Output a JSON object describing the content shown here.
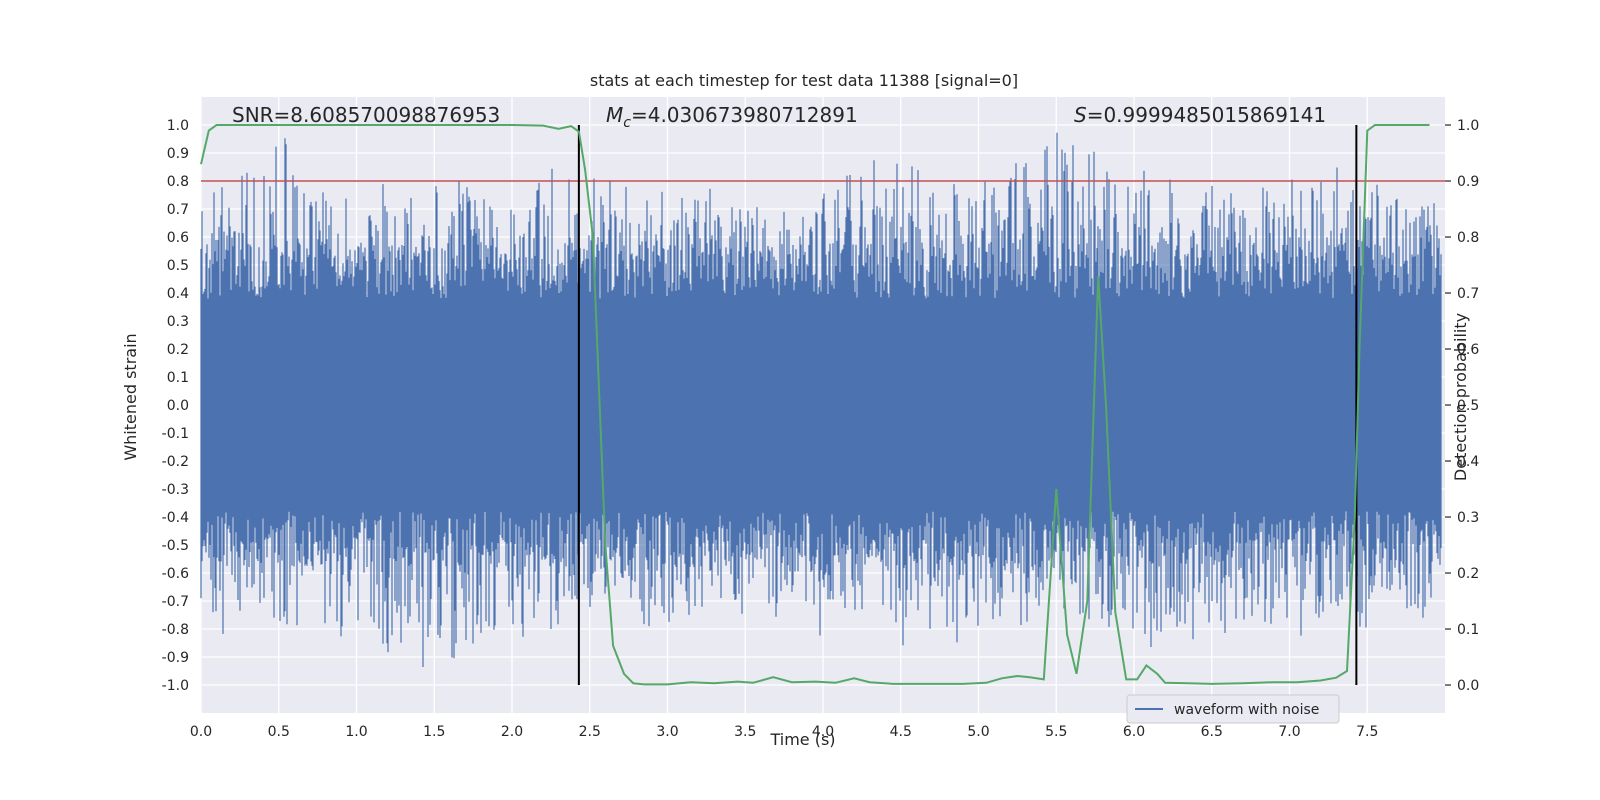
{
  "chart_data": {
    "type": "line",
    "title": "stats at each timestep for test data 11388 [signal=0]",
    "xlabel": "Time (s)",
    "ylabel": "Whitened strain",
    "y2label": "Detection probability",
    "xlim": [
      0.0,
      8.0
    ],
    "ylim": [
      -1.1,
      1.1
    ],
    "y2lim": [
      -0.05,
      1.05
    ],
    "x_ticks": [
      0.0,
      0.5,
      1.0,
      1.5,
      2.0,
      2.5,
      3.0,
      3.5,
      4.0,
      4.5,
      5.0,
      5.5,
      6.0,
      6.5,
      7.0,
      7.5
    ],
    "x_tick_labels": [
      "0.0",
      "0.5",
      "1.0",
      "1.5",
      "2.0",
      "2.5",
      "3.0",
      "3.5",
      "4.0",
      "4.5",
      "5.0",
      "5.5",
      "6.0",
      "6.5",
      "7.0",
      "7.5"
    ],
    "y_ticks": [
      1.0,
      0.9,
      0.8,
      0.7,
      0.6,
      0.5,
      0.4,
      0.3,
      0.2,
      0.1,
      0.0,
      -0.1,
      -0.2,
      -0.3,
      -0.4,
      -0.5,
      -0.6,
      -0.7,
      -0.8,
      -0.9,
      -1.0
    ],
    "y_tick_labels": [
      "1.0",
      "0.9",
      "0.8",
      "0.7",
      "0.6",
      "0.5",
      "0.4",
      "0.3",
      "0.2",
      "0.1",
      "0.0",
      "-0.1",
      "-0.2",
      "-0.3",
      "-0.4",
      "-0.5",
      "-0.6",
      "-0.7",
      "-0.8",
      "-0.9",
      "-1.0"
    ],
    "y2_ticks": [
      1.0,
      0.9,
      0.8,
      0.7,
      0.6,
      0.5,
      0.4,
      0.3,
      0.2,
      0.1,
      0.0
    ],
    "y2_tick_labels": [
      "1.0",
      "0.9",
      "0.8",
      "0.7",
      "0.6",
      "0.5",
      "0.4",
      "0.3",
      "0.2",
      "0.1",
      "0.0"
    ],
    "annotations": {
      "snr": "SNR=8.608570098876953",
      "mc_symbol": "M",
      "mc_sub": "c",
      "mc_value": "=4.030673980712891",
      "s_symbol": "S",
      "s_value": "=0.9999485015869141"
    },
    "threshold": 0.8,
    "vertical_lines": [
      2.43,
      7.43
    ],
    "legend": {
      "label": "waveform with noise",
      "placement": "lower right"
    },
    "grid": true,
    "colors": {
      "waveform": "#4c72b0",
      "probability": "#55a868",
      "threshold": "#c44e52",
      "vline": "#000000",
      "background": "#eaeaf2",
      "grid": "#ffffff"
    },
    "series": [
      {
        "name": "waveform with noise",
        "description_values": "dense noisy strain, envelope approx",
        "envelope": {
          "x": [
            0.0,
            0.5,
            1.0,
            1.5,
            2.0,
            2.5,
            3.0,
            3.5,
            4.0,
            4.5,
            5.0,
            5.5,
            6.0,
            6.5,
            7.0,
            7.5,
            7.98
          ],
          "upper": [
            0.72,
            0.94,
            0.7,
            0.78,
            0.83,
            0.78,
            0.75,
            0.72,
            0.78,
            0.84,
            0.74,
            1.0,
            0.82,
            0.75,
            0.82,
            0.78,
            0.7
          ],
          "lower": [
            -0.81,
            -0.74,
            -0.83,
            -0.96,
            -0.8,
            -0.7,
            -0.75,
            -0.7,
            -0.76,
            -0.8,
            -0.8,
            -0.74,
            -0.82,
            -0.8,
            -0.78,
            -0.74,
            -0.74
          ]
        }
      },
      {
        "name": "Detection probability",
        "x": [
          0.0,
          0.05,
          0.1,
          0.5,
          1.0,
          1.5,
          2.0,
          2.2,
          2.3,
          2.38,
          2.43,
          2.47,
          2.52,
          2.6,
          2.65,
          2.72,
          2.78,
          2.85,
          3.0,
          3.15,
          3.3,
          3.45,
          3.55,
          3.68,
          3.8,
          3.95,
          4.08,
          4.2,
          4.3,
          4.45,
          4.6,
          4.75,
          4.9,
          5.05,
          5.15,
          5.25,
          5.33,
          5.42,
          5.5,
          5.57,
          5.63,
          5.7,
          5.77,
          5.82,
          5.88,
          5.95,
          6.02,
          6.08,
          6.15,
          6.2,
          6.35,
          6.5,
          6.7,
          6.9,
          7.05,
          7.2,
          7.3,
          7.37,
          7.42,
          7.45,
          7.5,
          7.55,
          7.6,
          7.75,
          7.9
        ],
        "values": [
          0.93,
          0.99,
          1.0,
          1.0,
          1.0,
          1.0,
          1.0,
          0.999,
          0.993,
          0.998,
          0.988,
          0.92,
          0.8,
          0.25,
          0.07,
          0.02,
          0.003,
          0.001,
          0.001,
          0.005,
          0.003,
          0.006,
          0.004,
          0.014,
          0.005,
          0.006,
          0.004,
          0.012,
          0.005,
          0.002,
          0.002,
          0.002,
          0.002,
          0.004,
          0.012,
          0.016,
          0.014,
          0.01,
          0.35,
          0.09,
          0.02,
          0.15,
          0.73,
          0.5,
          0.13,
          0.01,
          0.01,
          0.035,
          0.02,
          0.004,
          0.003,
          0.002,
          0.003,
          0.005,
          0.005,
          0.008,
          0.013,
          0.025,
          0.3,
          0.6,
          0.99,
          1.0,
          1.0,
          1.0,
          1.0
        ]
      }
    ]
  }
}
